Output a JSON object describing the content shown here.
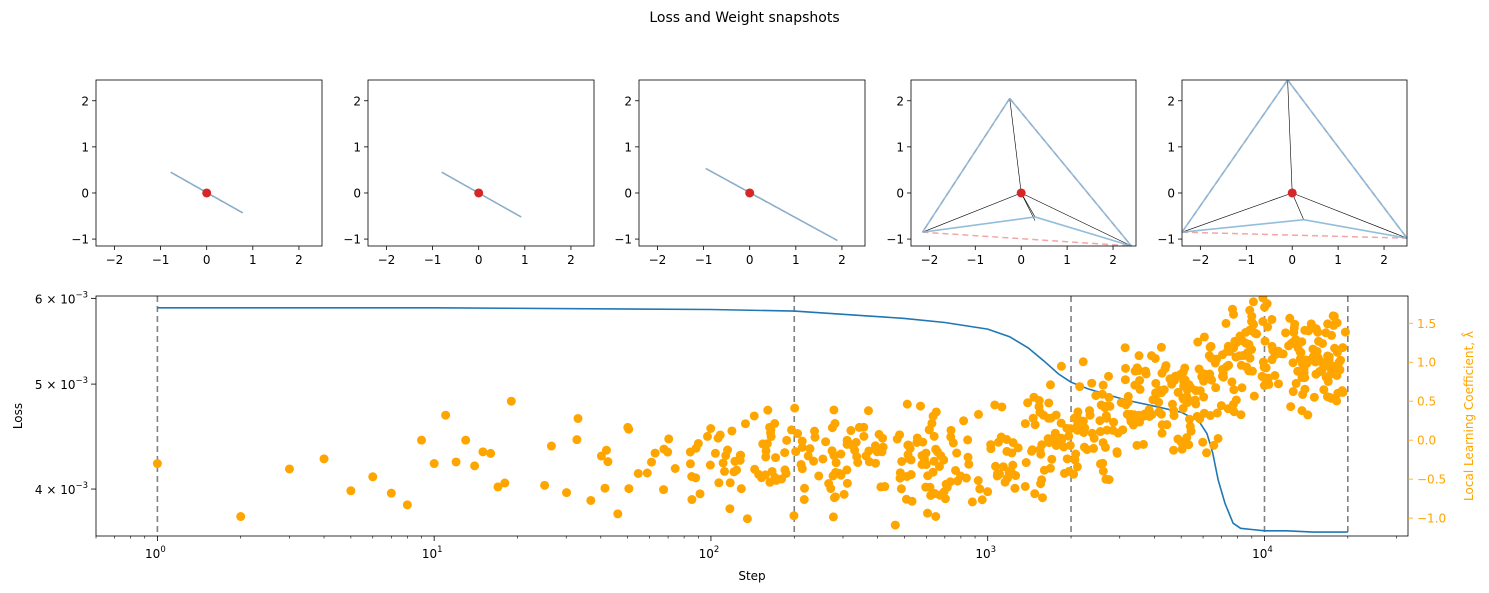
{
  "figure": {
    "title": "Loss and Weight snapshots",
    "colors": {
      "loss": "#1f77b4",
      "llc": "#ffa500",
      "vline": "#808080",
      "origin": "#d62728",
      "hull": "#7fb3d5",
      "dashed": "#f4a5a5",
      "black": "#000000"
    }
  },
  "chart_data": [
    {
      "type": "line",
      "name": "snapshot-1",
      "xlim": [
        -2.4,
        2.5
      ],
      "ylim": [
        -1.15,
        2.45
      ],
      "xticks": [
        -2,
        -1,
        0,
        1,
        2
      ],
      "xtick_labels": [
        "−2",
        "−1",
        "0",
        "1",
        "2"
      ],
      "yticks": [
        -1,
        0,
        1,
        2
      ],
      "ytick_labels": [
        "−1",
        "0",
        "1",
        "2"
      ],
      "points": [
        [
          -0.78,
          0.45
        ],
        [
          0.78,
          -0.43
        ],
        [
          0.0,
          0.0
        ]
      ],
      "hull_segments": [
        [
          [
            -0.78,
            0.45
          ],
          [
            0.78,
            -0.43
          ]
        ]
      ],
      "dashed_segments": [
        [
          [
            -0.78,
            0.45
          ],
          [
            0.78,
            -0.43
          ]
        ]
      ],
      "origin": [
        0,
        0
      ]
    },
    {
      "type": "line",
      "name": "snapshot-2",
      "xlim": [
        -2.4,
        2.5
      ],
      "ylim": [
        -1.15,
        2.45
      ],
      "xticks": [
        -2,
        -1,
        0,
        1,
        2
      ],
      "xtick_labels": [
        "−2",
        "−1",
        "0",
        "1",
        "2"
      ],
      "yticks": [
        -1,
        0,
        1,
        2
      ],
      "ytick_labels": [
        "−1",
        "0",
        "1",
        "2"
      ],
      "points": [
        [
          -0.8,
          0.45
        ],
        [
          0.92,
          -0.52
        ],
        [
          0.0,
          0.0
        ]
      ],
      "hull_segments": [
        [
          [
            -0.8,
            0.45
          ],
          [
            0.92,
            -0.52
          ]
        ]
      ],
      "dashed_segments": [
        [
          [
            -0.8,
            0.45
          ],
          [
            0.92,
            -0.52
          ]
        ]
      ],
      "origin": [
        0,
        0
      ]
    },
    {
      "type": "line",
      "name": "snapshot-3",
      "xlim": [
        -2.4,
        2.5
      ],
      "ylim": [
        -1.15,
        2.45
      ],
      "xticks": [
        -2,
        -1,
        0,
        1,
        2
      ],
      "xtick_labels": [
        "−2",
        "−1",
        "0",
        "1",
        "2"
      ],
      "yticks": [
        -1,
        0,
        1,
        2
      ],
      "ytick_labels": [
        "−1",
        "0",
        "1",
        "2"
      ],
      "points": [
        [
          -0.95,
          0.53
        ],
        [
          1.9,
          -1.03
        ],
        [
          0.0,
          0.0
        ]
      ],
      "hull_segments": [
        [
          [
            -0.95,
            0.53
          ],
          [
            1.9,
            -1.03
          ]
        ]
      ],
      "dashed_segments": [
        [
          [
            -0.95,
            0.53
          ],
          [
            1.9,
            -1.03
          ]
        ]
      ],
      "origin": [
        0,
        0
      ]
    },
    {
      "type": "line",
      "name": "snapshot-4",
      "xlim": [
        -2.4,
        2.5
      ],
      "ylim": [
        -1.15,
        2.45
      ],
      "xticks": [
        -2,
        -1,
        0,
        1,
        2
      ],
      "xtick_labels": [
        "−2",
        "−1",
        "0",
        "1",
        "2"
      ],
      "yticks": [
        -1,
        0,
        1,
        2
      ],
      "ytick_labels": [
        "−1",
        "0",
        "1",
        "2"
      ],
      "points": [
        [
          -0.25,
          2.05
        ],
        [
          -2.15,
          -0.85
        ],
        [
          2.4,
          -1.15
        ],
        [
          0.3,
          -0.52
        ],
        [
          0.3,
          -0.6
        ]
      ],
      "hull_segments": [
        [
          [
            -0.25,
            2.05
          ],
          [
            -2.15,
            -0.85
          ]
        ],
        [
          [
            -0.25,
            2.05
          ],
          [
            2.4,
            -1.15
          ]
        ],
        [
          [
            -2.15,
            -0.85
          ],
          [
            0.3,
            -0.52
          ]
        ],
        [
          [
            0.3,
            -0.52
          ],
          [
            2.4,
            -1.15
          ]
        ]
      ],
      "dashed_segments": [
        [
          [
            -0.25,
            2.05
          ],
          [
            -2.15,
            -0.85
          ]
        ],
        [
          [
            -0.25,
            2.05
          ],
          [
            2.4,
            -1.15
          ]
        ],
        [
          [
            -2.15,
            -0.85
          ],
          [
            2.4,
            -1.15
          ]
        ]
      ],
      "origin": [
        0,
        0
      ]
    },
    {
      "type": "line",
      "name": "snapshot-5",
      "xlim": [
        -2.4,
        2.5
      ],
      "ylim": [
        -1.15,
        2.45
      ],
      "xticks": [
        -2,
        -1,
        0,
        1,
        2
      ],
      "xtick_labels": [
        "−2",
        "−1",
        "0",
        "1",
        "2"
      ],
      "yticks": [
        -1,
        0,
        1,
        2
      ],
      "ytick_labels": [
        "−1",
        "0",
        "1",
        "2"
      ],
      "points": [
        [
          -0.1,
          2.45
        ],
        [
          -2.4,
          -0.85
        ],
        [
          2.5,
          -0.98
        ],
        [
          0.25,
          -0.58
        ]
      ],
      "hull_segments": [
        [
          [
            -0.1,
            2.45
          ],
          [
            -2.4,
            -0.85
          ]
        ],
        [
          [
            -0.1,
            2.45
          ],
          [
            2.5,
            -0.98
          ]
        ],
        [
          [
            -2.4,
            -0.85
          ],
          [
            0.25,
            -0.58
          ]
        ],
        [
          [
            0.25,
            -0.58
          ],
          [
            2.5,
            -0.98
          ]
        ]
      ],
      "dashed_segments": [
        [
          [
            -0.1,
            2.45
          ],
          [
            -2.4,
            -0.85
          ]
        ],
        [
          [
            -0.1,
            2.45
          ],
          [
            2.5,
            -0.98
          ]
        ],
        [
          [
            -2.4,
            -0.85
          ],
          [
            2.5,
            -0.98
          ]
        ]
      ],
      "origin": [
        0,
        0
      ]
    },
    {
      "type": "line",
      "name": "loss-and-llc",
      "xlabel": "Step",
      "ylabel": "Loss",
      "y2label": "Local Learning Coefficient, λ̂",
      "xscale": "log",
      "xlim": [
        0.6,
        33000
      ],
      "xticks": [
        1,
        10,
        100,
        1000,
        10000
      ],
      "xtick_labels": [
        [
          "10",
          "0"
        ],
        [
          "10",
          "1"
        ],
        [
          "10",
          "2"
        ],
        [
          "10",
          "3"
        ],
        [
          "10",
          "4"
        ]
      ],
      "yscale": "log",
      "ylim": [
        0.00362,
        0.00603
      ],
      "yticks": [
        0.004,
        0.005,
        0.006
      ],
      "ytick_labels": [
        [
          "4 × 10",
          "−3"
        ],
        [
          "5 × 10",
          "−3"
        ],
        [
          "6 × 10",
          "−3"
        ]
      ],
      "y2lim": [
        -1.23,
        1.85
      ],
      "y2ticks": [
        -1.0,
        -0.5,
        0.0,
        0.5,
        1.0,
        1.5
      ],
      "y2tick_labels": [
        "−1.0",
        "−0.5",
        "0.0",
        "0.5",
        "1.0",
        "1.5"
      ],
      "snapshot_steps": [
        1,
        200,
        2000,
        10000,
        20000
      ],
      "loss": {
        "x": [
          1,
          10,
          100,
          200,
          300,
          500,
          700,
          1000,
          1200,
          1400,
          1600,
          1800,
          2000,
          2300,
          2700,
          3200,
          4000,
          5000,
          5800,
          6200,
          6500,
          6800,
          7200,
          7700,
          8200,
          9000,
          10000,
          12000,
          15000,
          20000
        ],
        "y": [
          0.00588,
          0.00588,
          0.00586,
          0.00584,
          0.0058,
          0.00575,
          0.0057,
          0.00562,
          0.00553,
          0.0054,
          0.00525,
          0.00511,
          0.00502,
          0.00495,
          0.00489,
          0.00483,
          0.00477,
          0.00471,
          0.00462,
          0.0045,
          0.00432,
          0.00408,
          0.00388,
          0.00372,
          0.00368,
          0.00367,
          0.00366,
          0.00366,
          0.00365,
          0.00365
        ]
      },
      "llc_seed": {
        "x": [
          1,
          2,
          3,
          4,
          5,
          6,
          7,
          8,
          9,
          10,
          11,
          12,
          13,
          14,
          15,
          16,
          17,
          18,
          19
        ],
        "y": [
          -0.3,
          -0.98,
          -0.37,
          -0.24,
          -0.65,
          -0.47,
          -0.68,
          -0.83,
          0.0,
          -0.3,
          0.32,
          -0.28,
          0.0,
          -0.33,
          -0.15,
          -0.17,
          -0.6,
          -0.55,
          0.5
        ]
      },
      "llc_trend": {
        "x": [
          20,
          100,
          200,
          500,
          1000,
          1500,
          2000,
          3000,
          5000,
          6500,
          7500,
          9000,
          10000,
          12000,
          15000,
          20000
        ],
        "y": [
          -0.25,
          -0.28,
          -0.25,
          -0.3,
          -0.3,
          -0.05,
          0.15,
          0.4,
          0.55,
          0.6,
          1.0,
          1.25,
          1.2,
          1.15,
          1.05,
          0.9
        ]
      },
      "llc_spread": 0.33,
      "llc_random_points": 620
    }
  ]
}
